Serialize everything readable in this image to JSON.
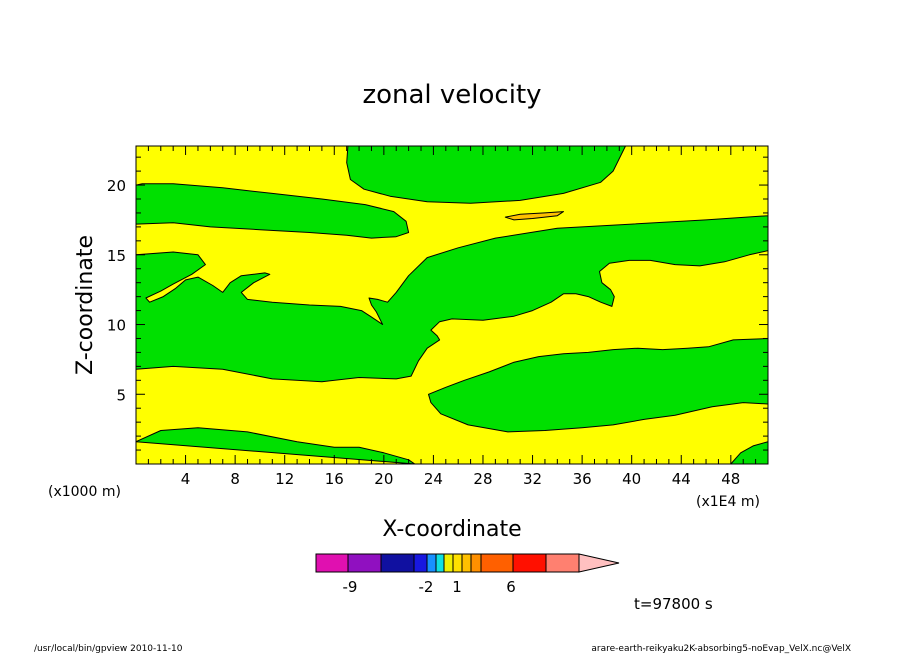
{
  "chart_data": {
    "type": "contour",
    "title": "zonal velocity",
    "xlabel": "X-coordinate",
    "ylabel": "Z-coordinate",
    "x_unit": "(x1E4 m)",
    "y_unit": "(x1000 m)",
    "x_range": [
      0,
      51
    ],
    "y_range": [
      0,
      22.8
    ],
    "x_ticks": [
      4,
      8,
      12,
      16,
      20,
      24,
      28,
      32,
      36,
      40,
      44,
      48
    ],
    "x_tick_labels": [
      "4",
      "8",
      "12",
      "16",
      "20",
      "24",
      "28",
      "32",
      "36",
      "40",
      "44",
      "48"
    ],
    "y_ticks": [
      5,
      10,
      15,
      20
    ],
    "y_tick_labels": [
      "5",
      "10",
      "15",
      "20"
    ],
    "grid": false,
    "colorbar": {
      "labels": [
        {
          "value": -9,
          "text": "-9"
        },
        {
          "value": -2,
          "text": "-2"
        },
        {
          "value": 1,
          "text": "1"
        },
        {
          "value": 6,
          "text": "6"
        }
      ],
      "levels": [
        -12,
        -9,
        -6,
        -3,
        -2,
        -1,
        0,
        1,
        2,
        3,
        6,
        9
      ],
      "colors": [
        "#e010b0",
        "#9010c0",
        "#1010a0",
        "#1818e0",
        "#1890ff",
        "#10e0e0",
        "#f0f000",
        "#ffe000",
        "#ffc000",
        "#ff9000",
        "#ff6000",
        "#ff1000",
        "#ff8070",
        "#ffc0c0"
      ]
    },
    "region_colors": {
      "green": "#00e000",
      "yellow": "#ffff00",
      "orange": "#ffc000"
    },
    "regions": [
      {
        "color": "green",
        "points": [
          [
            0,
            1.6
          ],
          [
            2,
            2.4
          ],
          [
            5,
            2.6
          ],
          [
            9,
            2.3
          ],
          [
            13,
            1.6
          ],
          [
            16,
            1.2
          ],
          [
            18,
            1.2
          ],
          [
            20,
            0.8
          ],
          [
            22,
            0.3
          ],
          [
            22.5,
            0
          ]
        ]
      },
      {
        "color": "green",
        "points": [
          [
            0,
            6.8
          ],
          [
            3,
            7.0
          ],
          [
            7,
            6.8
          ],
          [
            11,
            6.1
          ],
          [
            15,
            5.9
          ],
          [
            18,
            6.2
          ],
          [
            21,
            6.1
          ],
          [
            22.2,
            6.3
          ],
          [
            22.8,
            7.4
          ],
          [
            23.5,
            8.3
          ],
          [
            24,
            8.6
          ],
          [
            24.5,
            8.9
          ],
          [
            24.3,
            9.2
          ],
          [
            23.8,
            9.6
          ],
          [
            24.5,
            10.2
          ],
          [
            25.5,
            10.4
          ],
          [
            28,
            10.3
          ],
          [
            30.5,
            10.6
          ],
          [
            32,
            11.0
          ],
          [
            33.5,
            11.6
          ],
          [
            34.5,
            12.2
          ],
          [
            35.5,
            12.2
          ],
          [
            36.5,
            12.0
          ],
          [
            37.5,
            11.6
          ],
          [
            38.4,
            11.3
          ],
          [
            38.6,
            12.0
          ],
          [
            38.3,
            12.5
          ],
          [
            37.6,
            13.0
          ],
          [
            37.4,
            13.8
          ],
          [
            38.2,
            14.4
          ],
          [
            39.8,
            14.6
          ],
          [
            41.5,
            14.6
          ],
          [
            43.5,
            14.3
          ],
          [
            45.5,
            14.2
          ],
          [
            47.5,
            14.5
          ],
          [
            49.5,
            15.0
          ],
          [
            51,
            15.3
          ],
          [
            51,
            22.8
          ],
          [
            17.1,
            22.8
          ],
          [
            17.0,
            21.6
          ],
          [
            17.3,
            20.4
          ],
          [
            18.4,
            19.7
          ],
          [
            20.5,
            19.2
          ],
          [
            23.5,
            18.8
          ],
          [
            27,
            18.7
          ],
          [
            31,
            18.9
          ],
          [
            34.5,
            19.4
          ],
          [
            37.5,
            20.2
          ],
          [
            38.5,
            21.0
          ],
          [
            39.5,
            22.8
          ],
          [
            51,
            22.8
          ],
          [
            51,
            17.8
          ],
          [
            46,
            17.5
          ],
          [
            40,
            17.2
          ],
          [
            34,
            16.9
          ],
          [
            29,
            16.2
          ],
          [
            26,
            15.5
          ],
          [
            23.5,
            14.8
          ],
          [
            22,
            13.5
          ],
          [
            21,
            12.3
          ],
          [
            20.3,
            11.6
          ],
          [
            19.5,
            11.8
          ],
          [
            18.8,
            11.9
          ],
          [
            19,
            11.4
          ],
          [
            19.4,
            10.9
          ],
          [
            19.9,
            10.0
          ],
          [
            19.4,
            10.3
          ],
          [
            18.9,
            10.6
          ],
          [
            18.2,
            11.0
          ],
          [
            16.5,
            11.3
          ],
          [
            14,
            11.4
          ],
          [
            11,
            11.6
          ],
          [
            9,
            11.8
          ],
          [
            8.5,
            12.3
          ],
          [
            9.5,
            13.0
          ],
          [
            10.8,
            13.6
          ],
          [
            10.4,
            13.7
          ],
          [
            9.5,
            13.6
          ],
          [
            8.5,
            13.5
          ],
          [
            7.6,
            13.0
          ],
          [
            7.0,
            12.3
          ],
          [
            6.2,
            12.8
          ],
          [
            5.0,
            13.4
          ],
          [
            4.0,
            13.2
          ],
          [
            3.2,
            12.6
          ],
          [
            2.2,
            12.0
          ],
          [
            1.1,
            11.6
          ],
          [
            0.8,
            11.9
          ],
          [
            2,
            12.4
          ],
          [
            3,
            12.9
          ],
          [
            4.5,
            13.6
          ],
          [
            5.6,
            14.3
          ],
          [
            5,
            15.0
          ],
          [
            3,
            15.2
          ],
          [
            0,
            15.0
          ],
          [
            0,
            17.2
          ],
          [
            3,
            17.3
          ],
          [
            6,
            17.0
          ],
          [
            10,
            16.8
          ],
          [
            14,
            16.6
          ],
          [
            17,
            16.4
          ],
          [
            19,
            16.2
          ],
          [
            21,
            16.3
          ],
          [
            22,
            16.6
          ],
          [
            21.8,
            17.4
          ],
          [
            20.8,
            18.1
          ],
          [
            18.5,
            18.6
          ],
          [
            15,
            19.0
          ],
          [
            11,
            19.4
          ],
          [
            7,
            19.8
          ],
          [
            3,
            20.1
          ],
          [
            0.5,
            20.1
          ],
          [
            0,
            20.0
          ],
          [
            0,
            6.8
          ]
        ]
      },
      {
        "color": "green",
        "points": [
          [
            23.6,
            5.0
          ],
          [
            23.8,
            4.4
          ],
          [
            24.6,
            3.6
          ],
          [
            26.8,
            2.8
          ],
          [
            30,
            2.3
          ],
          [
            33,
            2.4
          ],
          [
            36,
            2.6
          ],
          [
            38.5,
            2.8
          ],
          [
            41,
            3.2
          ],
          [
            43.5,
            3.5
          ],
          [
            46.5,
            4.1
          ],
          [
            49,
            4.4
          ],
          [
            51,
            4.3
          ],
          [
            51,
            9.0
          ],
          [
            48.2,
            8.9
          ],
          [
            46.2,
            8.4
          ],
          [
            44.5,
            8.3
          ],
          [
            42.5,
            8.2
          ],
          [
            40.5,
            8.3
          ],
          [
            38.5,
            8.2
          ],
          [
            36.5,
            8.0
          ],
          [
            34.5,
            7.9
          ],
          [
            32.5,
            7.7
          ],
          [
            30.5,
            7.3
          ],
          [
            28.5,
            6.6
          ],
          [
            26.5,
            6.0
          ],
          [
            25,
            5.5
          ],
          [
            23.6,
            5.0
          ]
        ]
      },
      {
        "color": "green",
        "points": [
          [
            48,
            0
          ],
          [
            48.8,
            0.8
          ],
          [
            49.8,
            1.3
          ],
          [
            51,
            1.6
          ],
          [
            51,
            0
          ],
          [
            48,
            0
          ]
        ]
      },
      {
        "color": "orange",
        "points": [
          [
            29.8,
            17.7
          ],
          [
            31,
            17.9
          ],
          [
            33,
            18.0
          ],
          [
            34.5,
            18.1
          ],
          [
            34,
            17.8
          ],
          [
            32,
            17.6
          ],
          [
            30.5,
            17.5
          ],
          [
            29.8,
            17.7
          ]
        ]
      }
    ]
  },
  "colorbar_labels": {
    "l1": "-9",
    "l2": "-2",
    "l3": "1",
    "l4": "6"
  },
  "timestamp": "t=97800 s",
  "footer_left": "/usr/local/bin/gpview   2010-11-10",
  "footer_right": "arare-earth-reikyaku2K-absorbing5-noEvap_VelX.nc@VelX"
}
